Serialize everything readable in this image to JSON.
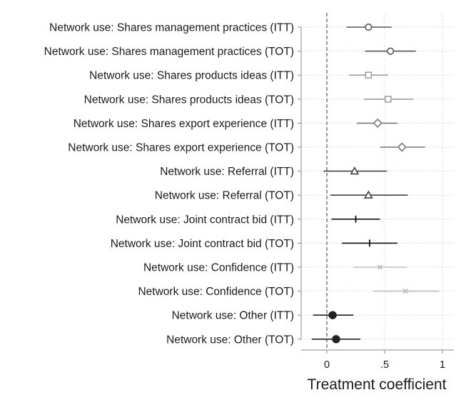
{
  "chart_data": {
    "type": "coefficient-plot",
    "title": "",
    "xlabel": "Treatment coefficient",
    "ylabel": "",
    "xlim": [
      -0.2,
      1.0
    ],
    "xticks": [
      0,
      0.5,
      1
    ],
    "xtick_labels": [
      "0",
      ".5",
      "1"
    ],
    "reference_line": 0,
    "grid": "vertical dotted at each tick",
    "series": [
      {
        "label": "Network use: Shares management practices (ITT)",
        "estimate": 0.36,
        "ci": [
          0.17,
          0.56
        ],
        "marker": "circle-open",
        "color": "#555555"
      },
      {
        "label": "Network use: Shares management practices (TOT)",
        "estimate": 0.55,
        "ci": [
          0.33,
          0.77
        ],
        "marker": "circle-open",
        "color": "#555555"
      },
      {
        "label": "Network use: Shares products ideas (ITT)",
        "estimate": 0.36,
        "ci": [
          0.19,
          0.53
        ],
        "marker": "square-open",
        "color": "#a0a0a0"
      },
      {
        "label": "Network use: Shares products ideas (TOT)",
        "estimate": 0.53,
        "ci": [
          0.32,
          0.75
        ],
        "marker": "square-open",
        "color": "#a0a0a0"
      },
      {
        "label": "Network use: Shares export experience (ITT)",
        "estimate": 0.44,
        "ci": [
          0.26,
          0.61
        ],
        "marker": "diamond-open",
        "color": "#777777"
      },
      {
        "label": "Network use: Shares export experience (TOT)",
        "estimate": 0.65,
        "ci": [
          0.46,
          0.85
        ],
        "marker": "diamond-open",
        "color": "#777777"
      },
      {
        "label": "Network use: Referral (ITT)",
        "estimate": 0.24,
        "ci": [
          -0.03,
          0.52
        ],
        "marker": "triangle-open",
        "color": "#444444"
      },
      {
        "label": "Network use: Referral (TOT)",
        "estimate": 0.36,
        "ci": [
          0.03,
          0.7
        ],
        "marker": "triangle-open",
        "color": "#444444"
      },
      {
        "label": "Network use: Joint contract bid (ITT)",
        "estimate": 0.25,
        "ci": [
          0.04,
          0.46
        ],
        "marker": "plus",
        "color": "#111111"
      },
      {
        "label": "Network use: Joint contract bid (TOT)",
        "estimate": 0.37,
        "ci": [
          0.13,
          0.61
        ],
        "marker": "plus",
        "color": "#111111"
      },
      {
        "label": "Network use: Confidence (ITT)",
        "estimate": 0.46,
        "ci": [
          0.23,
          0.69
        ],
        "marker": "x",
        "color": "#bdbdbd"
      },
      {
        "label": "Network use: Confidence (TOT)",
        "estimate": 0.68,
        "ci": [
          0.4,
          0.97
        ],
        "marker": "x",
        "color": "#bdbdbd"
      },
      {
        "label": "Network use: Other (ITT)",
        "estimate": 0.05,
        "ci": [
          -0.12,
          0.23
        ],
        "marker": "circle-filled",
        "color": "#222222"
      },
      {
        "label": "Network use: Other (TOT)",
        "estimate": 0.08,
        "ci": [
          -0.13,
          0.29
        ],
        "marker": "circle-filled",
        "color": "#222222"
      }
    ]
  },
  "colors": {
    "axis": "#888888",
    "grid": "#cfcfcf",
    "reference_line": "#555555",
    "text": "#1a1a1a"
  }
}
